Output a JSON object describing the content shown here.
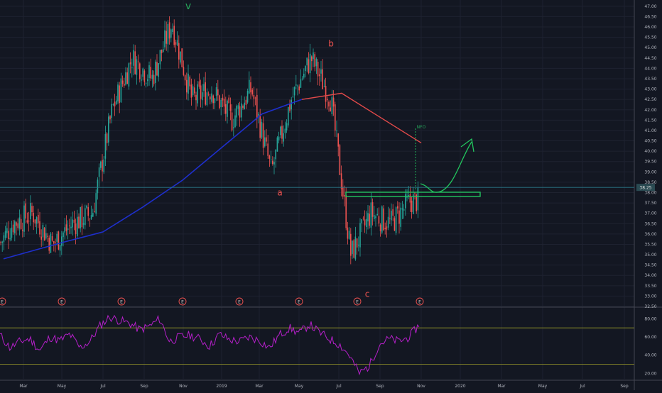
{
  "chart_data": [
    {
      "type": "candlestick",
      "title": "",
      "yaxis": {
        "ticks": [
          "47.00",
          "46.50",
          "46.00",
          "45.50",
          "45.00",
          "44.50",
          "44.00",
          "43.50",
          "43.00",
          "42.50",
          "42.00",
          "41.50",
          "41.00",
          "40.50",
          "40.00",
          "39.50",
          "39.00",
          "38.50",
          "38.00",
          "37.50",
          "37.00",
          "36.50",
          "36.00",
          "35.50",
          "35.00",
          "34.50",
          "34.00",
          "33.50",
          "33.00",
          "32.50"
        ],
        "ylim": [
          32.5,
          47.2
        ]
      },
      "xaxis": {
        "ticks": [
          "Mar",
          "May",
          "Jul",
          "Sep",
          "Nov",
          "2019",
          "Mar",
          "May",
          "Jul",
          "Sep",
          "Nov",
          "2020",
          "Mar",
          "May",
          "Jul",
          "Sep"
        ]
      },
      "last_price_label": "38.25",
      "last_price": 38.25,
      "price_path": [
        {
          "x": "2018-01",
          "y": 39.5
        },
        {
          "x": "2018-02",
          "y": 35.0
        },
        {
          "x": "2018-03",
          "y": 36.5
        },
        {
          "x": "2018-04",
          "y": 37.0
        },
        {
          "x": "2018-05",
          "y": 35.5
        },
        {
          "x": "2018-06",
          "y": 36.5
        },
        {
          "x": "2018-07",
          "y": 37.0
        },
        {
          "x": "2018-08",
          "y": 42.0
        },
        {
          "x": "2018-09",
          "y": 44.5
        },
        {
          "x": "2018-10",
          "y": 43.5
        },
        {
          "x": "2018-11",
          "y": 46.2
        },
        {
          "x": "2018-12",
          "y": 42.5
        },
        {
          "x": "2019-01",
          "y": 43.0
        },
        {
          "x": "2019-02",
          "y": 41.5
        },
        {
          "x": "2019-03",
          "y": 43.0
        },
        {
          "x": "2019-04",
          "y": 39.0
        },
        {
          "x": "2019-05",
          "y": 42.5
        },
        {
          "x": "2019-06",
          "y": 44.5
        },
        {
          "x": "2019-07",
          "y": 42.5
        },
        {
          "x": "2019-08",
          "y": 35.0
        },
        {
          "x": "2019-09",
          "y": 37.0
        },
        {
          "x": "2019-10",
          "y": 36.5
        },
        {
          "x": "2019-11",
          "y": 37.6
        }
      ],
      "moving_average": [
        {
          "x": "2018-02",
          "y": 34.8
        },
        {
          "x": "2018-05",
          "y": 35.6
        },
        {
          "x": "2018-07",
          "y": 36.1
        },
        {
          "x": "2018-09",
          "y": 37.3
        },
        {
          "x": "2018-11",
          "y": 38.6
        },
        {
          "x": "2019-01",
          "y": 40.2
        },
        {
          "x": "2019-03",
          "y": 41.8
        },
        {
          "x": "2019-05",
          "y": 42.5
        },
        {
          "x": "2019-07",
          "y": 42.8
        },
        {
          "x": "2019-09",
          "y": 41.6
        },
        {
          "x": "2019-11",
          "y": 40.4
        }
      ],
      "support_zone": {
        "low": 37.8,
        "high": 37.95,
        "label": ""
      },
      "wave_labels": [
        {
          "text": "v",
          "x": "2018-11",
          "y": 47.0,
          "color": "#26a65b"
        },
        {
          "text": "b",
          "x": "2019-06",
          "y": 45.2,
          "color": "#ef5350"
        },
        {
          "text": "a",
          "x": "2019-04",
          "y": 38.0,
          "color": "#ef5350"
        },
        {
          "text": "c",
          "x": "2019-08",
          "y": 33.1,
          "color": "#ef5350"
        }
      ],
      "annotations": [
        {
          "text": "NFO",
          "x": "2019-11",
          "y": 41.2,
          "color": "#26a65b"
        }
      ],
      "earnings_markers": [
        "E",
        "E",
        "E",
        "E",
        "E",
        "E",
        "E",
        "E"
      ]
    },
    {
      "type": "line",
      "title": "",
      "yaxis": {
        "ticks": [
          "80.00",
          "60.00",
          "40.00",
          "20.00"
        ],
        "ylim": [
          14,
          92
        ]
      },
      "levels": [
        70,
        30
      ],
      "series": [
        {
          "values": [
            62,
            48,
            55,
            58,
            45,
            60,
            56,
            63,
            48,
            55,
            72,
            82,
            78,
            75,
            68,
            72,
            80,
            55,
            60,
            62,
            58,
            50,
            63,
            57,
            55,
            60,
            56,
            48,
            62,
            70,
            64,
            74,
            65,
            58,
            52,
            40,
            20,
            28,
            52,
            58,
            55,
            60,
            73
          ]
        }
      ]
    }
  ],
  "colors": {
    "background": "#131722",
    "grid": "#1e2230",
    "up": "#26a69a",
    "down": "#ef5350",
    "ma_blue": "#1e2fcc",
    "ma_red": "#e34a4a",
    "support": "#22c55e",
    "projection": "#22c55e",
    "rsi": "#b51fc9",
    "rsi_band": "#9a9a2a",
    "axis_text": "#b2b5be",
    "price_line": "#2a7a8a"
  },
  "icons": {
    "earnings": "earnings-marker-icon",
    "projection": "projection-arrow-icon"
  }
}
